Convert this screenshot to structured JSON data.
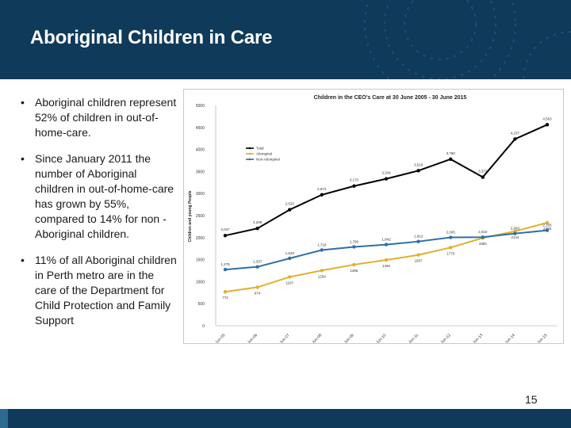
{
  "slide": {
    "title": "Aboriginal Children in Care",
    "page_number": "15",
    "colors": {
      "header": "#103a5a",
      "series_total": "#000000",
      "series_aboriginal": "#e0b12a",
      "series_non_aboriginal": "#2e6fa8"
    }
  },
  "bullets": [
    {
      "marker": "•",
      "text": "Aboriginal children represent 52% of children in out-of-home-care."
    },
    {
      "marker": "•",
      "text": "Since January 2011 the number of Aboriginal children in out-of-home-care has grown by 55%, compared to 14% for non -Aboriginal children."
    },
    {
      "marker": "•",
      "text": "11% of all Aboriginal children in Perth metro are in the care of the Department for Child Protection and Family Support"
    }
  ],
  "chart_data": {
    "type": "line",
    "title": "Children in the CEO's Care at 30 June 2005 - 30 June 2015",
    "ylabel": "Children and young People",
    "xlabel": "",
    "ylim": [
      0,
      5000
    ],
    "yticks": [
      0,
      500,
      1000,
      1500,
      2000,
      2500,
      3000,
      3500,
      4000,
      4500,
      5000
    ],
    "categories": [
      "Jun-05",
      "Jun-06",
      "Jun-07",
      "Jun-08",
      "Jun-09",
      "Jun-10",
      "Jun-11",
      "Jun-12",
      "Jun-13",
      "Jun-14",
      "Jun-15"
    ],
    "legend_position": "left",
    "grid": false,
    "series": [
      {
        "name": "Total",
        "color": "#000000",
        "values": [
          2047,
          2209,
          2633,
          2972,
          3170,
          3334,
          3519,
          3780,
          3372,
          4237,
          4563
        ],
        "labels": [
          "2,047",
          "2,209",
          "2,633",
          "2,972",
          "3,170",
          "3,334",
          "3,519",
          "3,780",
          "3,372",
          "4,237",
          "4,563"
        ]
      },
      {
        "name": "Aboriginal",
        "color": "#e0b12a",
        "values": [
          772,
          874,
          1107,
          1254,
          1386,
          1492,
          1607,
          1775,
          1992,
          2144,
          2338
        ],
        "labels": [
          "772",
          "874",
          "1107",
          "1254",
          "1386",
          "1492",
          "1607",
          "1775",
          "1992",
          "2144",
          "2338"
        ]
      },
      {
        "name": "Non-Aboriginal",
        "color": "#2e6fa8",
        "values": [
          1275,
          1337,
          1529,
          1718,
          1790,
          1842,
          1912,
          2005,
          2010,
          2093,
          2165
        ],
        "labels": [
          "1,275",
          "1,337",
          "1,529",
          "1,718",
          "1,790",
          "1,842",
          "1,912",
          "2,005",
          "2,010",
          "2,093",
          "2,165"
        ]
      }
    ]
  }
}
